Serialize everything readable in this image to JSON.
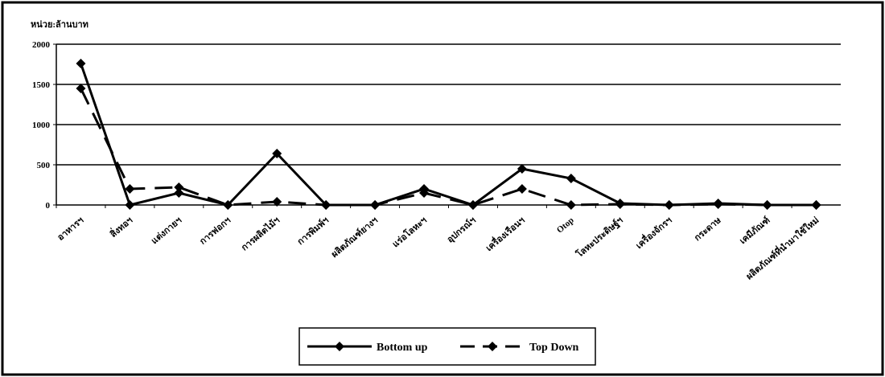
{
  "chart_data": {
    "type": "line",
    "y_label": "หน่วย:ล้านบาท",
    "categories": [
      "อาหารฯ",
      "สิ่งทอฯ",
      "แต่งกายฯ",
      "การฟอกฯ",
      "การผลิตไม้ฯ",
      "การพิมพ์ฯ",
      "ผลิตภัณฑ์ยางฯ",
      "แร่อโลหะฯ",
      "อุปกรณ์ฯ",
      "เครื่องเรือนฯ",
      "Otop",
      "โลหะประดิษฐ์ฯ",
      "เครื่องจักรฯ",
      "กระดาษ",
      "เคมีภัณฑ์",
      "ผลิตภัณฑ์ที่นำมาใช้ใหม่"
    ],
    "series": [
      {
        "name": "Bottom up",
        "color": "#000000",
        "dash": false,
        "values": [
          1760,
          0,
          150,
          0,
          640,
          0,
          0,
          200,
          0,
          450,
          330,
          20,
          0,
          20,
          0,
          0
        ]
      },
      {
        "name": "Top Down",
        "color": "#000000",
        "dash": true,
        "values": [
          1450,
          200,
          220,
          0,
          40,
          0,
          0,
          150,
          0,
          200,
          0,
          10,
          0,
          10,
          0,
          0
        ]
      }
    ],
    "ylim": [
      0,
      2000
    ],
    "yticks": [
      0,
      500,
      1000,
      1500,
      2000
    ],
    "grid": true,
    "legend": "bottom"
  }
}
